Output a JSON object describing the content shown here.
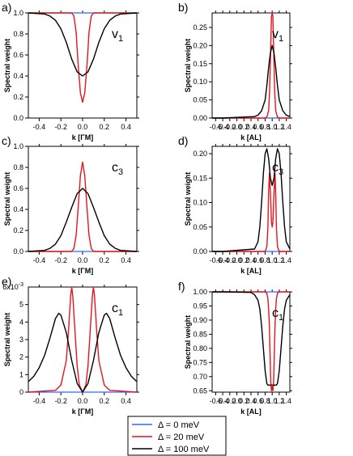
{
  "legend": [
    {
      "label": "Δ = 0 meV",
      "color": "#3366ff"
    },
    {
      "label": "Δ = 20 meV",
      "color": "#e8141c"
    },
    {
      "label": "Δ = 100 meV",
      "color": "#000000"
    }
  ],
  "chart_data": [
    {
      "panel": "a)",
      "type": "line",
      "band_label": "v",
      "band_sub": "1",
      "xlabel": "k [ΓM]",
      "ylabel": "Spectral weight",
      "xlim": [
        -0.5,
        0.5
      ],
      "ylim": [
        0,
        1.0
      ],
      "xticks": [
        -0.4,
        -0.2,
        0.0,
        0.2,
        0.4
      ],
      "xtick_labels": [
        "-0.4",
        "-0.2",
        "0.0",
        "0.2",
        "0.4"
      ],
      "yticks": [
        0.0,
        0.2,
        0.4,
        0.6,
        0.8,
        1.0
      ],
      "ytick_labels": [
        "0.0",
        "0.2",
        "0.4",
        "0.6",
        "0.8",
        "1.0"
      ],
      "series": [
        {
          "color": "#3366ff",
          "x": [
            -0.5,
            0.5
          ],
          "y": [
            1.0,
            1.0
          ]
        },
        {
          "color": "#e8141c",
          "x": [
            -0.5,
            -0.1,
            -0.08,
            -0.06,
            -0.04,
            -0.02,
            0.0,
            0.02,
            0.04,
            0.06,
            0.08,
            0.1,
            0.5
          ],
          "y": [
            1.0,
            1.0,
            0.97,
            0.82,
            0.5,
            0.24,
            0.15,
            0.24,
            0.5,
            0.82,
            0.97,
            1.0,
            1.0
          ]
        },
        {
          "color": "#000000",
          "x": [
            -0.5,
            -0.35,
            -0.3,
            -0.25,
            -0.2,
            -0.15,
            -0.1,
            -0.05,
            0.0,
            0.05,
            0.1,
            0.15,
            0.2,
            0.25,
            0.3,
            0.35,
            0.5
          ],
          "y": [
            1.0,
            0.99,
            0.97,
            0.93,
            0.85,
            0.72,
            0.56,
            0.44,
            0.4,
            0.44,
            0.56,
            0.72,
            0.85,
            0.93,
            0.97,
            0.99,
            1.0
          ]
        }
      ]
    },
    {
      "panel": "b)",
      "type": "line",
      "band_label": "v",
      "band_sub": "1",
      "xlabel": "k [AL]",
      "ylabel": "Spectral weight",
      "xlim": [
        -0.7,
        1.5
      ],
      "ylim": [
        0,
        0.29
      ],
      "xticks": [
        -0.6,
        -0.4,
        -0.2,
        0.0,
        0.2,
        0.4,
        0.6,
        0.8,
        1.0,
        1.2,
        1.4
      ],
      "xtick_labels": [
        "-0.6",
        "-0.4",
        "-0.2",
        "0.0",
        "0.2",
        "0.4",
        "0.6",
        "0.8",
        "1.0",
        "1.2",
        "1.4"
      ],
      "yticks": [
        0.0,
        0.05,
        0.1,
        0.15,
        0.2,
        0.25
      ],
      "ytick_labels": [
        "0.00",
        "0.05",
        "0.10",
        "0.15",
        "0.20",
        "0.25"
      ],
      "series": [
        {
          "color": "#3366ff",
          "x": [
            -0.7,
            1.5
          ],
          "y": [
            0.0,
            0.0
          ]
        },
        {
          "color": "#e8141c",
          "x": [
            -0.7,
            0.8,
            0.85,
            0.9,
            0.93,
            0.96,
            0.98,
            1.0,
            1.02,
            1.04,
            1.07,
            1.1,
            1.15,
            1.2,
            1.5
          ],
          "y": [
            0.0,
            0.0,
            0.003,
            0.02,
            0.08,
            0.2,
            0.28,
            0.29,
            0.28,
            0.2,
            0.08,
            0.02,
            0.003,
            0.0,
            0.0
          ]
        },
        {
          "color": "#000000",
          "x": [
            -0.7,
            -0.4,
            0.5,
            0.6,
            0.7,
            0.8,
            0.85,
            0.9,
            0.95,
            1.0,
            1.05,
            1.1,
            1.15,
            1.2,
            1.3,
            1.4,
            1.5
          ],
          "y": [
            0.0,
            0.0,
            0.004,
            0.008,
            0.02,
            0.05,
            0.09,
            0.14,
            0.18,
            0.2,
            0.18,
            0.14,
            0.09,
            0.05,
            0.02,
            0.008,
            0.004
          ]
        }
      ]
    },
    {
      "panel": "c)",
      "type": "line",
      "band_label": "c",
      "band_sub": "3",
      "xlabel": "k [ΓM]",
      "ylabel": "Spectral weight",
      "xlim": [
        -0.5,
        0.5
      ],
      "ylim": [
        0,
        1.0
      ],
      "xticks": [
        -0.4,
        -0.2,
        0.0,
        0.2,
        0.4
      ],
      "xtick_labels": [
        "-0.4",
        "-0.2",
        "0.0",
        "0.2",
        "0.4"
      ],
      "yticks": [
        0.0,
        0.2,
        0.4,
        0.6,
        0.8,
        1.0
      ],
      "ytick_labels": [
        "0.0",
        "0.2",
        "0.4",
        "0.6",
        "0.8",
        "1.0"
      ],
      "series": [
        {
          "color": "#3366ff",
          "x": [
            -0.5,
            0.5
          ],
          "y": [
            0.0,
            0.0
          ]
        },
        {
          "color": "#e8141c",
          "x": [
            -0.5,
            -0.1,
            -0.08,
            -0.06,
            -0.04,
            -0.02,
            0.0,
            0.02,
            0.04,
            0.06,
            0.08,
            0.1,
            0.5
          ],
          "y": [
            0.0,
            0.0,
            0.03,
            0.15,
            0.42,
            0.72,
            0.85,
            0.72,
            0.42,
            0.15,
            0.03,
            0.0,
            0.0
          ]
        },
        {
          "color": "#000000",
          "x": [
            -0.5,
            -0.35,
            -0.3,
            -0.25,
            -0.2,
            -0.15,
            -0.1,
            -0.05,
            0.0,
            0.05,
            0.1,
            0.15,
            0.2,
            0.25,
            0.3,
            0.35,
            0.5
          ],
          "y": [
            0.0,
            0.01,
            0.03,
            0.07,
            0.15,
            0.28,
            0.42,
            0.55,
            0.6,
            0.55,
            0.42,
            0.28,
            0.15,
            0.07,
            0.03,
            0.01,
            0.0
          ]
        }
      ]
    },
    {
      "panel": "d)",
      "type": "line",
      "band_label": "c",
      "band_sub": "3",
      "xlabel": "k [AL]",
      "ylabel": "Spectral weight",
      "xlim": [
        -0.7,
        1.5
      ],
      "ylim": [
        0,
        0.215
      ],
      "xticks": [
        -0.6,
        -0.4,
        -0.2,
        0.0,
        0.2,
        0.4,
        0.6,
        0.8,
        1.0,
        1.2,
        1.4
      ],
      "xtick_labels": [
        "-0.6",
        "-0.4",
        "-0.2",
        "0.0",
        "0.2",
        "0.4",
        "0.6",
        "0.8",
        "1.0",
        "1.2",
        "1.4"
      ],
      "yticks": [
        0.0,
        0.05,
        0.1,
        0.15,
        0.2
      ],
      "ytick_labels": [
        "0.00",
        "0.05",
        "0.10",
        "0.15",
        "0.20"
      ],
      "series": [
        {
          "color": "#3366ff",
          "x": [
            -0.7,
            1.5
          ],
          "y": [
            0.0,
            0.0
          ]
        },
        {
          "color": "#e8141c",
          "x": [
            -0.7,
            0.8,
            0.85,
            0.88,
            0.9,
            0.92,
            0.95,
            0.98,
            1.0,
            1.02,
            1.05,
            1.08,
            1.1,
            1.12,
            1.15,
            1.2,
            1.5
          ],
          "y": [
            0.0,
            0.0,
            0.01,
            0.05,
            0.12,
            0.16,
            0.12,
            0.06,
            0.05,
            0.06,
            0.12,
            0.16,
            0.12,
            0.05,
            0.01,
            0.0,
            0.0
          ]
        },
        {
          "color": "#000000",
          "x": [
            -0.7,
            -0.4,
            0.5,
            0.6,
            0.65,
            0.7,
            0.75,
            0.8,
            0.85,
            0.9,
            0.95,
            1.0,
            1.05,
            1.1,
            1.15,
            1.2,
            1.25,
            1.3,
            1.35,
            1.4,
            1.5
          ],
          "y": [
            0.0,
            0.0,
            0.005,
            0.02,
            0.05,
            0.1,
            0.16,
            0.2,
            0.21,
            0.19,
            0.15,
            0.135,
            0.15,
            0.19,
            0.21,
            0.2,
            0.16,
            0.1,
            0.05,
            0.02,
            0.005
          ]
        }
      ]
    },
    {
      "panel": "e)",
      "type": "line",
      "band_label": "c",
      "band_sub": "1",
      "xlabel": "k [ΓM]",
      "ylabel": "Spectral weight",
      "xlim": [
        -0.5,
        0.5
      ],
      "ylim": [
        0,
        0.006
      ],
      "y_multiplier": "6x10",
      "y_multiplier_exp": "-3",
      "xticks": [
        -0.4,
        -0.2,
        0.0,
        0.2,
        0.4
      ],
      "xtick_labels": [
        "-0.4",
        "-0.2",
        "0.0",
        "0.2",
        "0.4"
      ],
      "yticks": [
        0,
        0.001,
        0.002,
        0.003,
        0.004,
        0.005
      ],
      "ytick_labels": [
        "0",
        "1",
        "2",
        "3",
        "4",
        "5"
      ],
      "series": [
        {
          "color": "#3366ff",
          "x": [
            -0.5,
            0.5
          ],
          "y": [
            0.0,
            0.0
          ]
        },
        {
          "color": "#e8141c",
          "x": [
            -0.5,
            -0.25,
            -0.2,
            -0.15,
            -0.13,
            -0.11,
            -0.1,
            -0.09,
            -0.07,
            -0.05,
            -0.03,
            0.0,
            0.03,
            0.05,
            0.07,
            0.09,
            0.1,
            0.11,
            0.13,
            0.15,
            0.2,
            0.25,
            0.5
          ],
          "y": [
            0.0,
            0.0001,
            0.0004,
            0.0018,
            0.0035,
            0.0055,
            0.006,
            0.0055,
            0.0035,
            0.0015,
            0.0004,
            0.0,
            0.0004,
            0.0015,
            0.0035,
            0.0055,
            0.006,
            0.0055,
            0.0035,
            0.0018,
            0.0004,
            0.0001,
            0.0
          ]
        },
        {
          "color": "#000000",
          "x": [
            -0.5,
            -0.45,
            -0.4,
            -0.35,
            -0.3,
            -0.25,
            -0.22,
            -0.2,
            -0.15,
            -0.1,
            -0.05,
            0.0,
            0.05,
            0.1,
            0.15,
            0.2,
            0.22,
            0.25,
            0.3,
            0.35,
            0.4,
            0.45,
            0.5
          ],
          "y": [
            0.0006,
            0.0009,
            0.0014,
            0.0021,
            0.0031,
            0.0042,
            0.0045,
            0.0044,
            0.0034,
            0.0018,
            0.0005,
            0.0,
            0.0005,
            0.0018,
            0.0034,
            0.0044,
            0.0045,
            0.0042,
            0.0031,
            0.0021,
            0.0014,
            0.0009,
            0.0006
          ]
        }
      ]
    },
    {
      "panel": "f)",
      "type": "line",
      "band_label": "c",
      "band_sub": "1",
      "xlabel": "k [AL]",
      "ylabel": "Spectral weight",
      "xlim": [
        -0.7,
        1.5
      ],
      "ylim": [
        0.645,
        1.0
      ],
      "xticks": [
        -0.6,
        -0.4,
        -0.2,
        0.0,
        0.2,
        0.4,
        0.6,
        0.8,
        1.0,
        1.2,
        1.4
      ],
      "xtick_labels": [
        "-0.6",
        "-0.4",
        "-0.2",
        "0.0",
        "0.2",
        "0.4",
        "0.6",
        "0.8",
        "1.0",
        "1.2",
        "1.4"
      ],
      "yticks": [
        0.65,
        0.7,
        0.75,
        0.8,
        0.85,
        0.9,
        0.95,
        1.0
      ],
      "ytick_labels": [
        "0.65",
        "0.70",
        "0.75",
        "0.80",
        "0.85",
        "0.90",
        "0.95",
        "1.00"
      ],
      "series": [
        {
          "color": "#3366ff",
          "x": [
            -0.7,
            1.5
          ],
          "y": [
            1.0,
            1.0
          ]
        },
        {
          "color": "#e8141c",
          "x": [
            -0.7,
            0.8,
            0.85,
            0.88,
            0.9,
            0.92,
            0.94,
            0.96,
            0.98,
            1.0,
            1.02,
            1.04,
            1.06,
            1.08,
            1.1,
            1.12,
            1.15,
            1.2,
            1.5
          ],
          "y": [
            1.0,
            1.0,
            0.995,
            0.975,
            0.94,
            0.88,
            0.78,
            0.68,
            0.65,
            0.665,
            0.65,
            0.68,
            0.78,
            0.88,
            0.94,
            0.975,
            0.995,
            1.0,
            1.0
          ]
        },
        {
          "color": "#000000",
          "x": [
            -0.7,
            -0.4,
            0.4,
            0.5,
            0.6,
            0.65,
            0.7,
            0.75,
            0.8,
            0.85,
            0.88,
            1.12,
            1.15,
            1.2,
            1.25,
            1.3,
            1.35,
            1.4,
            1.5
          ],
          "y": [
            1.0,
            1.0,
            0.998,
            0.99,
            0.97,
            0.94,
            0.88,
            0.8,
            0.72,
            0.675,
            0.67,
            0.67,
            0.675,
            0.72,
            0.8,
            0.88,
            0.94,
            0.97,
            0.99
          ]
        }
      ]
    }
  ]
}
